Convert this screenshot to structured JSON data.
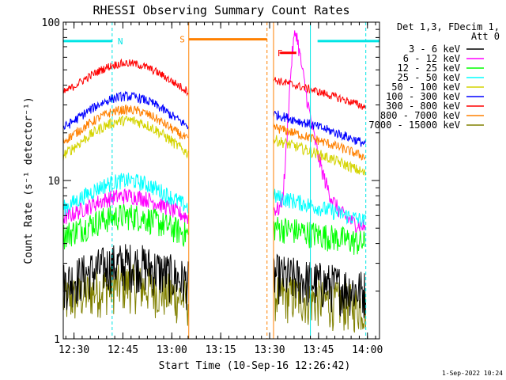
{
  "chart_data": {
    "type": "line",
    "title": "RHESSI Observing Summary Count Rates",
    "xlabel": "Start Time (10-Sep-16 12:26:42)",
    "ylabel": "Count Rate (s⁻¹ detector⁻¹)",
    "x_unit": "minutes after 12:26:42 UT",
    "xlim": [
      0,
      97
    ],
    "ylim": [
      1,
      100
    ],
    "yscale": "log",
    "x_ticks": [
      {
        "label": "12:30",
        "t": 3.3
      },
      {
        "label": "12:45",
        "t": 18.3
      },
      {
        "label": "13:00",
        "t": 33.3
      },
      {
        "label": "13:15",
        "t": 48.3
      },
      {
        "label": "13:30",
        "t": 63.3
      },
      {
        "label": "13:45",
        "t": 78.3
      },
      {
        "label": "14:00",
        "t": 93.3
      }
    ],
    "y_ticks": [
      {
        "label": "1",
        "v": 1
      },
      {
        "label": "10",
        "v": 10
      },
      {
        "label": "100",
        "v": 100
      }
    ],
    "legend": {
      "position": "right",
      "header": [
        "Det 1,3, FDecim 1,",
        "Att 0"
      ],
      "entries": [
        {
          "label": "3 - 6 keV",
          "color": "#000000"
        },
        {
          "label": "6 - 12 keV",
          "color": "#ff00ff"
        },
        {
          "label": "12 - 25 keV",
          "color": "#00ff00"
        },
        {
          "label": "25 - 50 keV",
          "color": "#00ffff"
        },
        {
          "label": "50 - 100 keV",
          "color": "#d4d400"
        },
        {
          "label": "100 - 300 keV",
          "color": "#0000ff"
        },
        {
          "label": "300 - 800 keV",
          "color": "#ff0000"
        },
        {
          "label": "800 - 7000 keV",
          "color": "#ff8000"
        },
        {
          "label": "7000 - 15000 keV",
          "color": "#808000"
        }
      ]
    },
    "flags": [
      {
        "label": "N",
        "color": "#00e5e5",
        "bars": [
          [
            0,
            15
          ],
          [
            78,
            97
          ]
        ],
        "level": 76,
        "label_at": 17.5
      },
      {
        "label": "S",
        "color": "#ff8000",
        "bars": [
          [
            38.5,
            62.5
          ]
        ],
        "level": 78,
        "label_at": 36.5
      },
      {
        "label": "F",
        "color": "#ff0000",
        "bars": [
          [
            66.5,
            71.5
          ]
        ],
        "level": 64,
        "label_at": 66.5
      }
    ],
    "markers": {
      "orange_solid": [
        38.5,
        64.5
      ],
      "orange_dashed": [
        62.5
      ],
      "cyan_dashed": [
        15,
        92.8
      ],
      "cyan_solid": [
        75.8
      ]
    },
    "data_gap": [
      38.5,
      64.5
    ],
    "intervals": [
      [
        0,
        38.5
      ],
      [
        64.5,
        92.8
      ]
    ],
    "orbit_peak_t": 19.5,
    "series": [
      {
        "name": "300 - 800 keV",
        "color": "#ff0000",
        "base": 29,
        "peak": 55,
        "width": 12,
        "noise": 0.06
      },
      {
        "name": "100 - 300 keV",
        "color": "#0000ff",
        "base": 17,
        "peak": 34,
        "width": 12,
        "noise": 0.07
      },
      {
        "name": "800 - 7000 keV",
        "color": "#ff8000",
        "base": 14,
        "peak": 28,
        "width": 12,
        "noise": 0.07
      },
      {
        "name": "50 - 100 keV",
        "color": "#d4d400",
        "base": 11,
        "peak": 24,
        "width": 12,
        "noise": 0.08
      },
      {
        "name": "25 - 50 keV",
        "color": "#00ffff",
        "base": 5.5,
        "peak": 10,
        "width": 12,
        "noise": 0.12
      },
      {
        "name": "6 - 12 keV",
        "color": "#ff00ff",
        "base": 5,
        "peak": 8,
        "width": 12,
        "noise": 0.12
      },
      {
        "name": "12 - 25 keV",
        "color": "#00ff00",
        "base": 4,
        "peak": 6,
        "width": 12,
        "noise": 0.2
      },
      {
        "name": "3 - 6 keV",
        "color": "#000000",
        "base": 2,
        "peak": 3,
        "width": 12,
        "noise": 0.35
      },
      {
        "name": "7000 - 15000 keV",
        "color": "#808000",
        "base": 1.6,
        "peak": 2.2,
        "width": 12,
        "noise": 0.35
      }
    ],
    "flare": {
      "series": "6 - 12 keV",
      "t_peak": 71.5,
      "peak": 80,
      "rise": 1.5,
      "decay": 3
    }
  },
  "timestamp": "1-Sep-2022 10:24"
}
